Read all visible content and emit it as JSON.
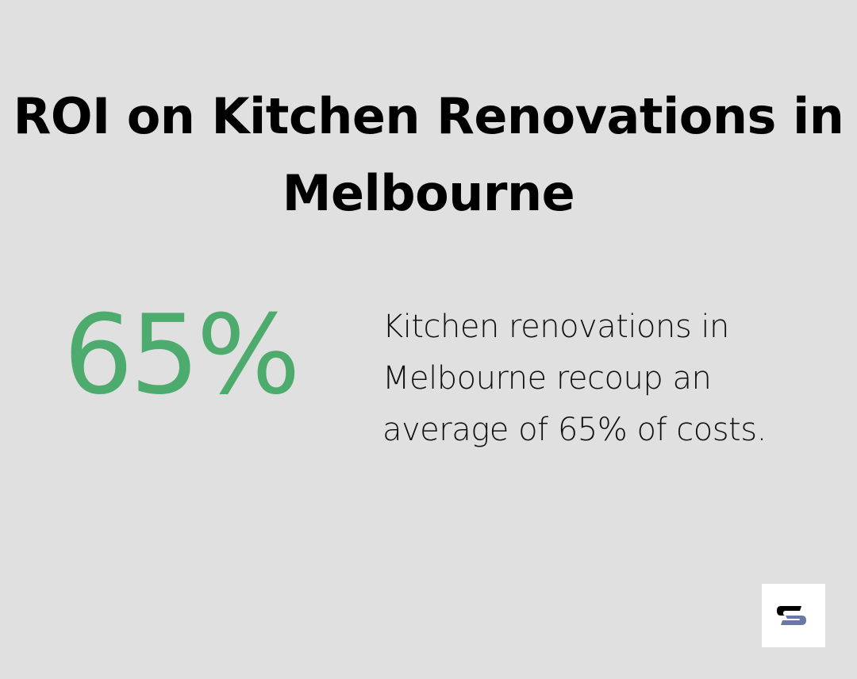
{
  "title": "ROI on Kitchen Renovations in Melbourne",
  "stat": {
    "value": "65%",
    "color": "#4dab6d"
  },
  "description": "Kitchen renovations in Melbourne recoup an average of 65% of costs.",
  "logo": {
    "icon": "s-logo-icon",
    "colors": [
      "#000000",
      "#6a78a5"
    ]
  }
}
